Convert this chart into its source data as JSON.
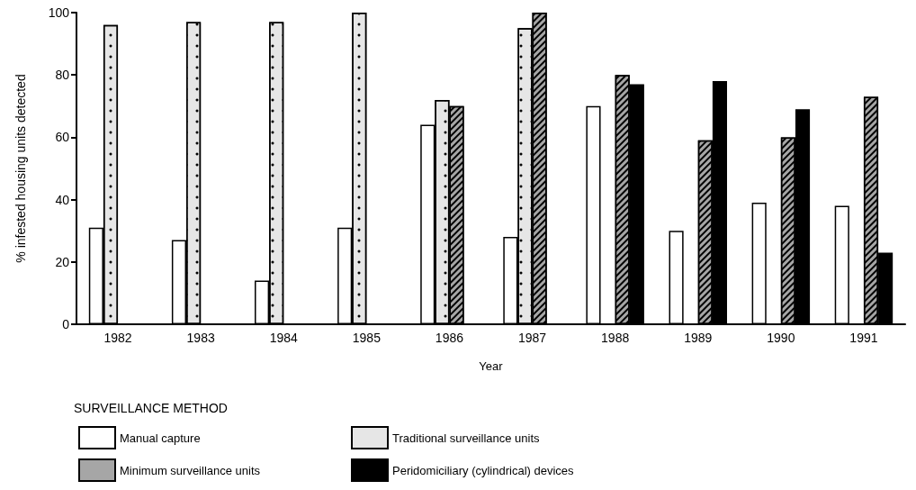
{
  "chart_data": {
    "type": "bar",
    "xlabel": "Year",
    "ylabel": "% infested housing units detected",
    "legend_title": "SURVEILLANCE METHOD",
    "categories": [
      "1982",
      "1983",
      "1984",
      "1985",
      "1986",
      "1987",
      "1988",
      "1989",
      "1990",
      "1991"
    ],
    "series": [
      {
        "name": "Manual capture",
        "color": "#ffffff",
        "values": [
          31,
          27,
          14,
          31,
          64,
          28,
          70,
          30,
          39,
          38
        ]
      },
      {
        "name": "Traditional surveillance units",
        "color": "#e6e6e6",
        "values": [
          96,
          97,
          97,
          100,
          72,
          95,
          null,
          null,
          null,
          null
        ]
      },
      {
        "name": "Minimum surveillance units",
        "color": "#a6a6a6",
        "values": [
          null,
          null,
          null,
          null,
          70,
          100,
          80,
          59,
          60,
          73
        ]
      },
      {
        "name": "Peridomiciliary (cylindrical) devices",
        "color": "#000000",
        "values": [
          null,
          null,
          null,
          null,
          null,
          null,
          77,
          78,
          69,
          23
        ]
      }
    ],
    "ylim": [
      0,
      100
    ],
    "yticks": [
      0,
      20,
      40,
      60,
      80,
      100
    ],
    "grid": false,
    "legend": "bottom left"
  }
}
